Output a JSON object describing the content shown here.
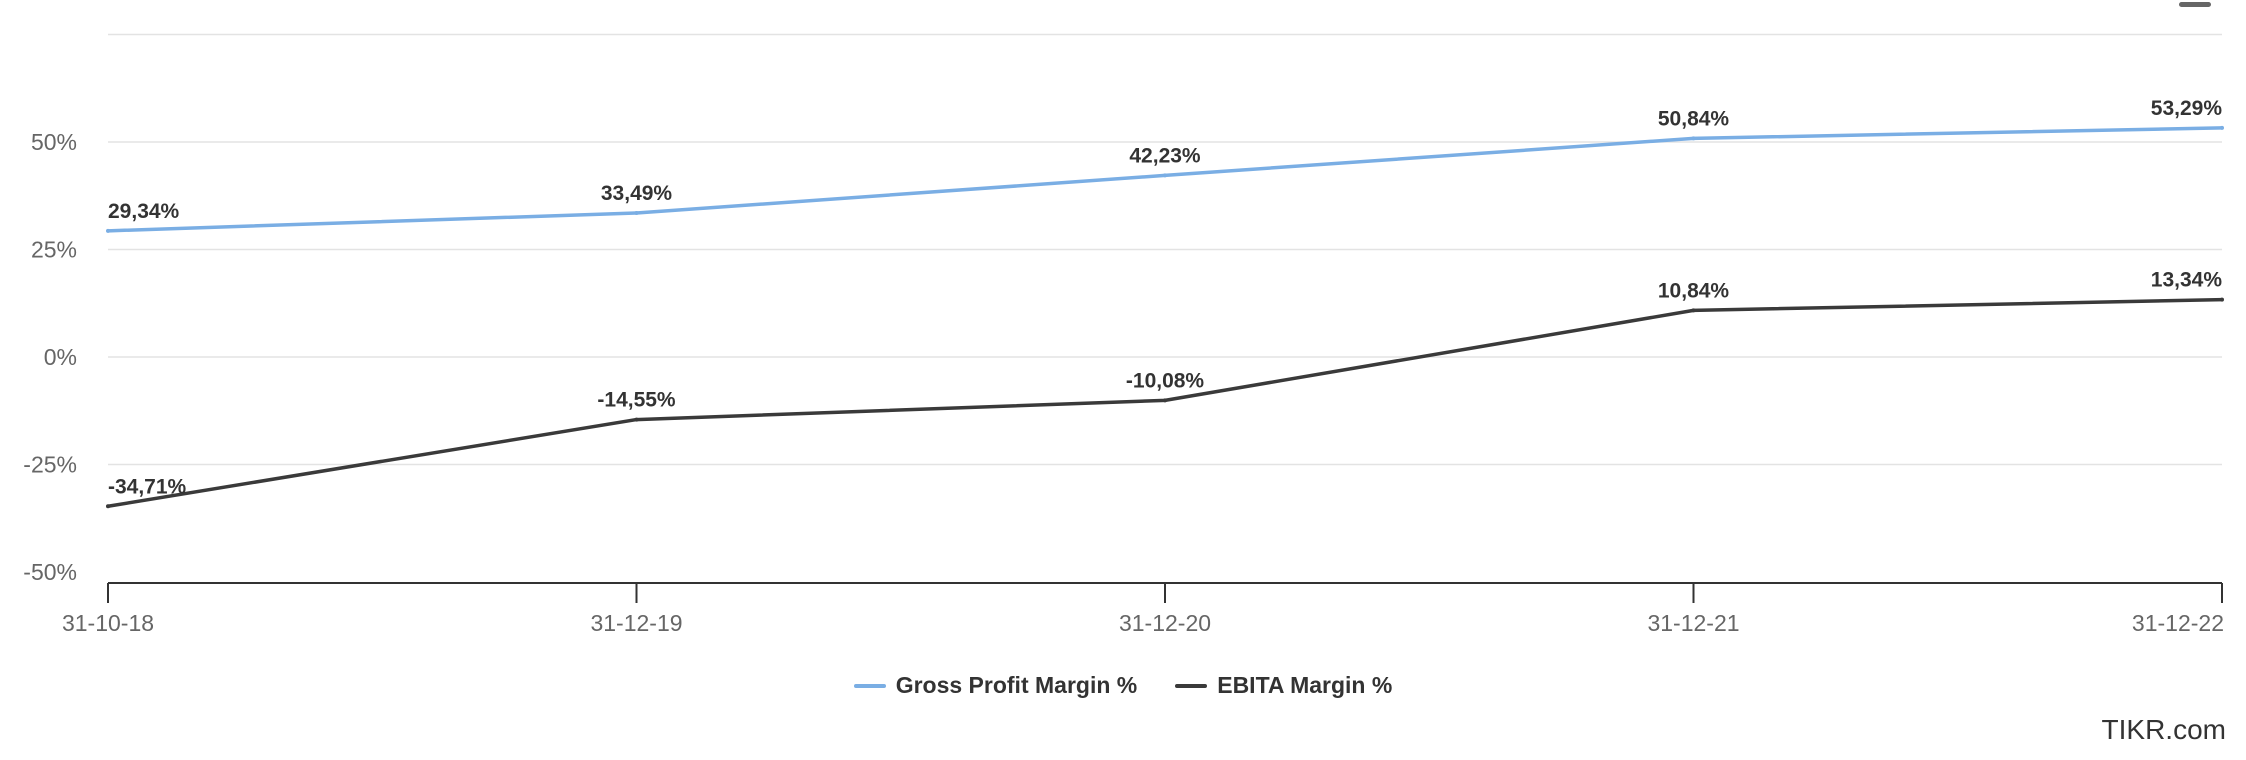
{
  "chart_data": {
    "type": "line",
    "categories": [
      "31-10-18",
      "31-12-19",
      "31-12-20",
      "31-12-21",
      "31-12-22"
    ],
    "series": [
      {
        "name": "Gross Profit Margin %",
        "values": [
          29.34,
          33.49,
          42.23,
          50.84,
          53.29
        ],
        "labels": [
          "29,34%",
          "33,49%",
          "42,23%",
          "50,84%",
          "53,29%"
        ],
        "color": "#7aaee4"
      },
      {
        "name": "EBITA Margin %",
        "values": [
          -34.71,
          -14.55,
          -10.08,
          10.84,
          13.34
        ],
        "labels": [
          "-34,71%",
          "-14,55%",
          "-10,08%",
          "10,84%",
          "13,34%"
        ],
        "color": "#3a3a3a"
      }
    ],
    "y_ticks": [
      {
        "value": 50,
        "label": "50%"
      },
      {
        "value": 25,
        "label": "25%"
      },
      {
        "value": 0,
        "label": "0%"
      },
      {
        "value": -25,
        "label": "-25%"
      },
      {
        "value": -50,
        "label": "-50%"
      }
    ],
    "ylim": [
      -50,
      75
    ],
    "grid": true,
    "legend_position": "bottom-center"
  },
  "watermark": "TIKR.com"
}
